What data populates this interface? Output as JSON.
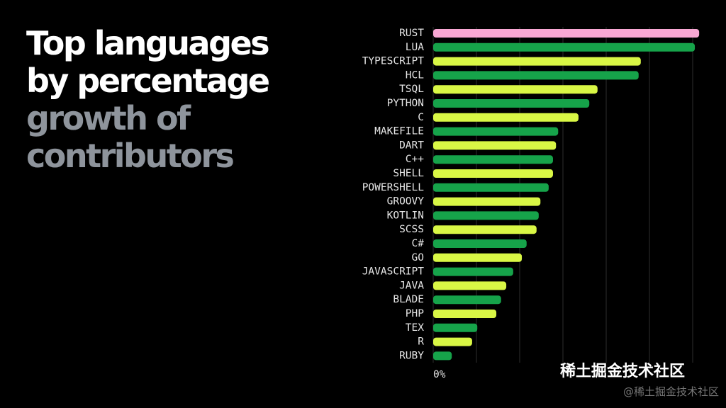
{
  "chart_data": {
    "type": "barh",
    "title_lines": [
      "Top languages",
      "by percentage",
      "growth of",
      "contributors"
    ],
    "title_colors": [
      "#ffffff",
      "#ffffff",
      "#8e949c",
      "#8e949c"
    ],
    "categories": [
      "RUST",
      "LUA",
      "TYPESCRIPT",
      "HCL",
      "TSQL",
      "PYTHON",
      "C",
      "MAKEFILE",
      "DART",
      "C++",
      "SHELL",
      "POWERSHELL",
      "GROOVY",
      "KOTLIN",
      "SCSS",
      "C#",
      "GO",
      "JAVASCRIPT",
      "JAVA",
      "BLADE",
      "PHP",
      "TEX",
      "R",
      "RUBY"
    ],
    "values": [
      61.5,
      60.5,
      48.0,
      47.5,
      38.0,
      36.1,
      33.6,
      28.9,
      28.4,
      27.7,
      27.7,
      26.7,
      24.8,
      24.4,
      23.9,
      21.6,
      20.5,
      18.5,
      16.9,
      15.7,
      14.6,
      10.2,
      9.0,
      4.3
    ],
    "colors": [
      "#f9a8d4",
      "#16a34a",
      "#d9f745",
      "#16a34a",
      "#d9f745",
      "#16a34a",
      "#d9f745",
      "#16a34a",
      "#d9f745",
      "#16a34a",
      "#d9f745",
      "#16a34a",
      "#d9f745",
      "#16a34a",
      "#d9f745",
      "#16a34a",
      "#d9f745",
      "#16a34a",
      "#d9f745",
      "#16a34a",
      "#d9f745",
      "#16a34a",
      "#d9f745",
      "#16a34a"
    ],
    "xlim": [
      0,
      68
    ],
    "xticks": [
      {
        "value": 0,
        "label": "0%"
      }
    ],
    "xgrid": [
      0,
      10,
      20,
      30,
      40,
      50,
      60
    ],
    "watermark": "稀土掘金技术社区",
    "watermark_small": "@稀土掘金技术社区"
  }
}
